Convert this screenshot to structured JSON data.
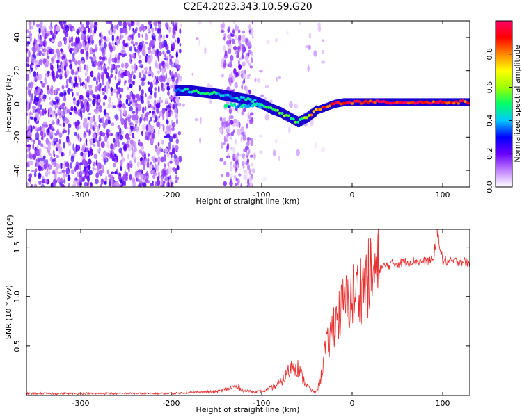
{
  "title": "C2E4.2023.343.10.59.G20",
  "chart_data": [
    {
      "type": "heatmap",
      "name": "spectrogram",
      "xlabel": "Height of straight line (km)",
      "ylabel": "Frequency (Hz)",
      "xlim": [
        -360,
        130
      ],
      "ylim": [
        -50,
        50
      ],
      "x_ticks": [
        -300,
        -200,
        -100,
        0,
        100
      ],
      "y_ticks": [
        -40,
        -20,
        0,
        20,
        40
      ],
      "grid": false,
      "colorbar": {
        "label": "Normalized spectral amplitude",
        "ticks": [
          0.0,
          0.2,
          0.4,
          0.6,
          0.8
        ],
        "range": [
          0.0,
          1.0
        ],
        "colormap": [
          "#ffffff",
          "#c080ff",
          "#6a00ff",
          "#0000ff",
          "#00c8ff",
          "#00ff66",
          "#a0ff00",
          "#ffff00",
          "#ff8800",
          "#ff0000",
          "#ff0066"
        ]
      },
      "ridge": {
        "x": [
          -195,
          -180,
          -165,
          -150,
          -140,
          -130,
          -120,
          -110,
          -100,
          -90,
          -80,
          -70,
          -60,
          -50,
          -45,
          -40,
          -30,
          -20,
          -10,
          0,
          20,
          40,
          60,
          80,
          100,
          130
        ],
        "y": [
          8,
          8,
          7,
          6,
          5,
          4,
          3,
          2,
          0,
          -3,
          -5,
          -8,
          -11,
          -8,
          -6,
          -4,
          -2,
          0,
          1,
          1,
          1,
          1,
          1,
          1,
          1,
          1
        ],
        "amplitude": [
          0.35,
          0.45,
          0.5,
          0.45,
          0.4,
          0.4,
          0.4,
          0.45,
          0.45,
          0.5,
          0.55,
          0.55,
          0.5,
          0.6,
          0.75,
          0.8,
          0.85,
          0.9,
          0.9,
          0.95,
          0.95,
          0.95,
          0.95,
          0.95,
          0.9,
          0.85
        ]
      }
    },
    {
      "type": "line",
      "name": "snr",
      "xlabel": "Height of straight line (km)",
      "ylabel": "SNR (10 * v/v)",
      "y_multiplier": "(x10⁴)",
      "xlim": [
        -360,
        130
      ],
      "ylim": [
        0,
        1.68
      ],
      "x_ticks": [
        -300,
        -200,
        -100,
        0,
        100
      ],
      "y_ticks": [
        0.5,
        1.0,
        1.5
      ],
      "grid": false,
      "color": "#e83232",
      "series": [
        {
          "x": [
            -360,
            -300,
            -250,
            -200,
            -180,
            -150,
            -140,
            -130,
            -125,
            -120,
            -110,
            -100,
            -90,
            -80,
            -75,
            -70,
            -65,
            -60,
            -55,
            -50,
            -45,
            -40,
            -35,
            -30,
            -25,
            -20,
            -15,
            -10,
            -5,
            0,
            5,
            10,
            15,
            20,
            30,
            40,
            50,
            60,
            70,
            80,
            90,
            95,
            100,
            110,
            120,
            130
          ],
          "y": [
            0.02,
            0.02,
            0.02,
            0.02,
            0.03,
            0.04,
            0.06,
            0.09,
            0.08,
            0.05,
            0.04,
            0.04,
            0.07,
            0.12,
            0.18,
            0.25,
            0.32,
            0.28,
            0.18,
            0.1,
            0.05,
            0.03,
            0.15,
            0.45,
            0.55,
            0.75,
            0.8,
            0.9,
            0.95,
            1.0,
            1.05,
            1.1,
            1.15,
            1.2,
            1.28,
            1.32,
            1.34,
            1.35,
            1.36,
            1.35,
            1.37,
            1.62,
            1.36,
            1.35,
            1.36,
            1.34
          ]
        }
      ]
    }
  ]
}
